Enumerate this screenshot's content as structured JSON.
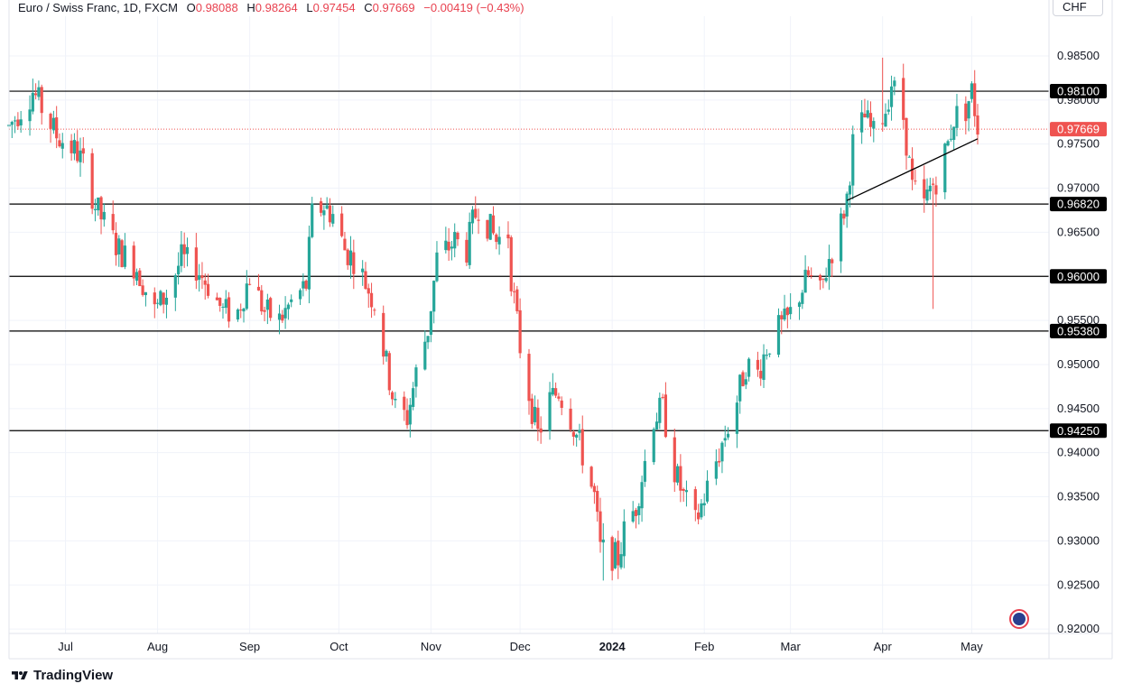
{
  "header": {
    "symbol": "Euro / Swiss Franc, 1D, FXCM",
    "open_label": "O",
    "open": "0.98088",
    "high_label": "H",
    "high": "0.98264",
    "low_label": "L",
    "low": "0.97454",
    "close_label": "C",
    "close": "0.97669",
    "change": "−0.00419 (−0.43%)"
  },
  "currency": "CHF",
  "brand": "TradingView",
  "colors": {
    "up": "#26a69a",
    "down": "#ef5350",
    "grid": "#f0f3fa",
    "level": "#000000",
    "last_price": "#ef5350"
  },
  "chart_data": {
    "type": "candlestick",
    "title": "Euro / Swiss Franc, 1D, FXCM",
    "ylim": [
      0.9195,
      0.9895
    ],
    "y_ticks": [
      "0.98500",
      "0.98000",
      "0.97500",
      "0.97000",
      "0.96500",
      "0.95500",
      "0.95000",
      "0.94500",
      "0.94000",
      "0.93500",
      "0.93000",
      "0.92500",
      "0.92000"
    ],
    "x_ticks": [
      {
        "label": "Jul",
        "date": "2023-07-01"
      },
      {
        "label": "Aug",
        "date": "2023-08-01"
      },
      {
        "label": "Sep",
        "date": "2023-09-01"
      },
      {
        "label": "Oct",
        "date": "2023-10-01"
      },
      {
        "label": "Nov",
        "date": "2023-11-01"
      },
      {
        "label": "Dec",
        "date": "2023-12-01"
      },
      {
        "label": "2024",
        "date": "2024-01-01"
      },
      {
        "label": "Feb",
        "date": "2024-02-01"
      },
      {
        "label": "Mar",
        "date": "2024-03-01"
      },
      {
        "label": "Apr",
        "date": "2024-04-01"
      },
      {
        "label": "May",
        "date": "2024-05-01"
      }
    ],
    "horizontal_levels": [
      {
        "label": "0.98100",
        "value": 0.981
      },
      {
        "label": "0.96820",
        "value": 0.9682
      },
      {
        "label": "0.96000",
        "value": 0.96
      },
      {
        "label": "0.95380",
        "value": 0.9538
      },
      {
        "label": "0.94250",
        "value": 0.9425
      }
    ],
    "last_price": {
      "label": "0.97669",
      "value": 0.97669
    },
    "trendline": {
      "start": {
        "date": "2024-03-20",
        "value": 0.9686
      },
      "end": {
        "date": "2024-05-03",
        "value": 0.9756
      }
    },
    "price_path": [
      [
        "2023-06-12",
        0.977
      ],
      [
        "2023-06-20",
        0.981
      ],
      [
        "2023-06-28",
        0.976
      ],
      [
        "2023-07-05",
        0.974
      ],
      [
        "2023-07-08",
        0.972
      ],
      [
        "2023-07-11",
        0.968
      ],
      [
        "2023-07-14",
        0.966
      ],
      [
        "2023-07-19",
        0.963
      ],
      [
        "2023-07-25",
        0.961
      ],
      [
        "2023-07-31",
        0.956
      ],
      [
        "2023-08-04",
        0.958
      ],
      [
        "2023-08-09",
        0.962
      ],
      [
        "2023-08-14",
        0.961
      ],
      [
        "2023-08-18",
        0.959
      ],
      [
        "2023-08-23",
        0.956
      ],
      [
        "2023-08-28",
        0.956
      ],
      [
        "2023-09-01",
        0.96
      ],
      [
        "2023-09-06",
        0.956
      ],
      [
        "2023-09-11",
        0.955
      ],
      [
        "2023-09-15",
        0.957
      ],
      [
        "2023-09-20",
        0.959
      ],
      [
        "2023-09-22",
        0.967
      ],
      [
        "2023-09-26",
        0.968
      ],
      [
        "2023-09-29",
        0.967
      ],
      [
        "2023-10-03",
        0.963
      ],
      [
        "2023-10-06",
        0.962
      ],
      [
        "2023-10-09",
        0.96
      ],
      [
        "2023-10-13",
        0.957
      ],
      [
        "2023-10-17",
        0.95
      ],
      [
        "2023-10-20",
        0.945
      ],
      [
        "2023-10-24",
        0.944
      ],
      [
        "2023-10-27",
        0.949
      ],
      [
        "2023-10-31",
        0.954
      ],
      [
        "2023-11-03",
        0.962
      ],
      [
        "2023-11-06",
        0.963
      ],
      [
        "2023-11-09",
        0.964
      ],
      [
        "2023-11-13",
        0.963
      ],
      [
        "2023-11-15",
        0.966
      ],
      [
        "2023-11-17",
        0.968
      ],
      [
        "2023-11-20",
        0.966
      ],
      [
        "2023-11-23",
        0.964
      ],
      [
        "2023-11-27",
        0.965
      ],
      [
        "2023-11-28",
        0.96
      ],
      [
        "2023-12-01",
        0.952
      ],
      [
        "2023-12-05",
        0.945
      ],
      [
        "2023-12-07",
        0.942
      ],
      [
        "2023-12-11",
        0.946
      ],
      [
        "2023-12-14",
        0.947
      ],
      [
        "2023-12-18",
        0.944
      ],
      [
        "2023-12-21",
        0.941
      ],
      [
        "2023-12-26",
        0.935
      ],
      [
        "2023-12-28",
        0.929
      ],
      [
        "2024-01-03",
        0.928
      ],
      [
        "2024-01-05",
        0.931
      ],
      [
        "2024-01-09",
        0.934
      ],
      [
        "2024-01-12",
        0.939
      ],
      [
        "2024-01-15",
        0.944
      ],
      [
        "2024-01-18",
        0.945
      ],
      [
        "2024-01-22",
        0.938
      ],
      [
        "2024-01-25",
        0.935
      ],
      [
        "2024-01-29",
        0.932
      ],
      [
        "2024-02-01",
        0.935
      ],
      [
        "2024-02-05",
        0.939
      ],
      [
        "2024-02-08",
        0.942
      ],
      [
        "2024-02-12",
        0.946
      ],
      [
        "2024-02-15",
        0.95
      ],
      [
        "2024-02-19",
        0.949
      ],
      [
        "2024-02-22",
        0.952
      ],
      [
        "2024-02-26",
        0.954
      ],
      [
        "2024-02-29",
        0.955
      ],
      [
        "2024-03-04",
        0.958
      ],
      [
        "2024-03-07",
        0.96
      ],
      [
        "2024-03-11",
        0.958
      ],
      [
        "2024-03-14",
        0.962
      ],
      [
        "2024-03-18",
        0.966
      ],
      [
        "2024-03-20",
        0.969
      ],
      [
        "2024-03-22",
        0.975
      ],
      [
        "2024-03-26",
        0.978
      ],
      [
        "2024-03-29",
        0.976
      ],
      [
        "2024-04-02",
        0.979
      ],
      [
        "2024-04-04",
        0.982
      ],
      [
        "2024-04-08",
        0.978
      ],
      [
        "2024-04-11",
        0.97
      ],
      [
        "2024-04-15",
        0.968
      ],
      [
        "2024-04-17",
        0.97
      ],
      [
        "2024-04-19",
        0.971
      ],
      [
        "2024-04-23",
        0.975
      ],
      [
        "2024-04-25",
        0.978
      ],
      [
        "2024-04-29",
        0.979
      ],
      [
        "2024-05-01",
        0.981
      ],
      [
        "2024-05-03",
        0.977
      ]
    ],
    "extreme_wicks": [
      {
        "date": "2024-04-18",
        "low": 0.9563,
        "high": 0.97
      },
      {
        "date": "2023-12-29",
        "low": 0.9255,
        "high": 0.932
      },
      {
        "date": "2024-04-01",
        "low": 0.98,
        "high": 0.9848
      }
    ]
  }
}
